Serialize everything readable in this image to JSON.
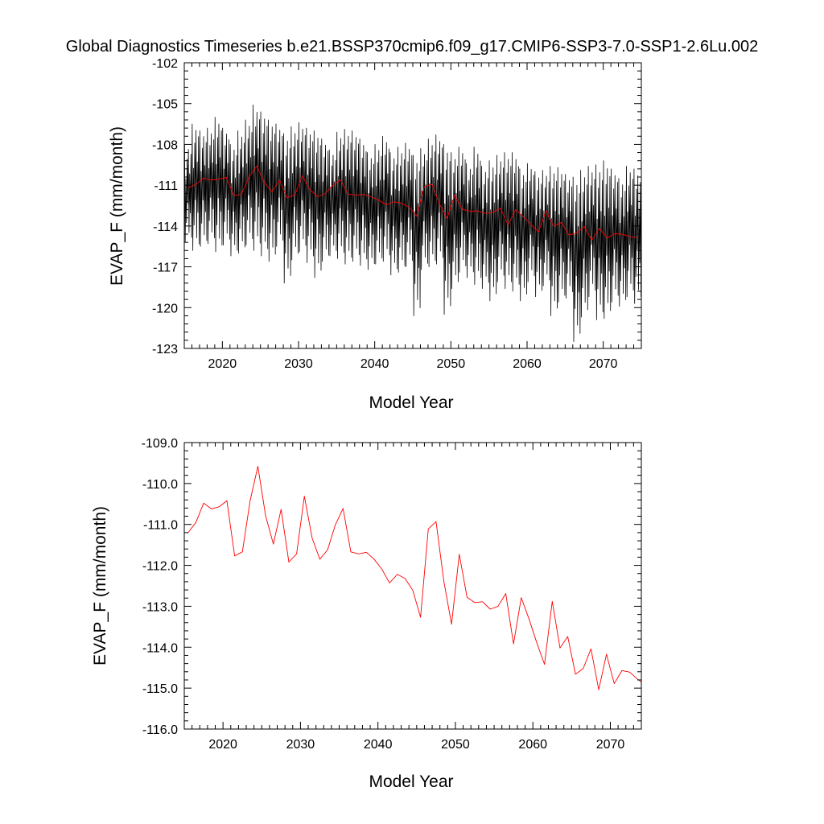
{
  "title": "Global Diagnostics Timeseries b.e21.BSSP370cmip6.f09_g17.CMIP6-SSP3-7.0-SSP1-2.6Lu.002",
  "colors": {
    "monthly": "#000000",
    "annual": "#ff0000",
    "axes": "#000000",
    "background": "#ffffff"
  },
  "chart_data": [
    {
      "type": "line",
      "xlabel": "Model Year",
      "ylabel": "EVAP_F (mm/month)",
      "xlim": [
        2015,
        2075
      ],
      "ylim": [
        -123,
        -102
      ],
      "x_ticks": [
        2020,
        2030,
        2040,
        2050,
        2060,
        2070
      ],
      "y_ticks": [
        -123,
        -120,
        -117,
        -114,
        -111,
        -108,
        -105,
        -102
      ],
      "y_tick_labels": [
        "-123",
        "-120",
        "-117",
        "-114",
        "-111",
        "-108",
        "-105",
        "-102"
      ],
      "grid": false,
      "series": [
        {
          "color": "#000000",
          "x_start": 2015.04,
          "x_step": 0.0833333,
          "seasonal_extremes": [
            [
              2015,
              -108.0,
              -115.2
            ],
            [
              2016,
              -106.5,
              -115.8
            ],
            [
              2017,
              -107.0,
              -115.5
            ],
            [
              2018,
              -106.8,
              -115.3
            ],
            [
              2019,
              -106.0,
              -115.9
            ],
            [
              2020,
              -106.8,
              -115.4
            ],
            [
              2021,
              -108.0,
              -116.2
            ],
            [
              2022,
              -107.0,
              -116.0
            ],
            [
              2023,
              -106.2,
              -115.4
            ],
            [
              2024,
              -105.1,
              -115.8
            ],
            [
              2025,
              -105.6,
              -116.2
            ],
            [
              2026,
              -106.2,
              -116.6
            ],
            [
              2027,
              -106.5,
              -115.5
            ],
            [
              2028,
              -107.2,
              -118.2
            ],
            [
              2029,
              -106.7,
              -116.5
            ],
            [
              2030,
              -106.4,
              -115.9
            ],
            [
              2031,
              -106.8,
              -116.7
            ],
            [
              2032,
              -107.0,
              -117.8
            ],
            [
              2033,
              -107.6,
              -116.6
            ],
            [
              2034,
              -108.4,
              -116.2
            ],
            [
              2035,
              -107.1,
              -116.4
            ],
            [
              2036,
              -106.9,
              -116.8
            ],
            [
              2037,
              -107.0,
              -116.6
            ],
            [
              2038,
              -107.6,
              -116.9
            ],
            [
              2039,
              -108.6,
              -117.2
            ],
            [
              2040,
              -108.0,
              -116.8
            ],
            [
              2041,
              -107.4,
              -116.6
            ],
            [
              2042,
              -108.6,
              -117.6
            ],
            [
              2043,
              -108.2,
              -117.4
            ],
            [
              2044,
              -107.9,
              -117.0
            ],
            [
              2045,
              -108.8,
              -120.6
            ],
            [
              2046,
              -108.3,
              -117.2
            ],
            [
              2047,
              -107.6,
              -117.0
            ],
            [
              2048,
              -107.3,
              -116.8
            ],
            [
              2049,
              -108.0,
              -120.5
            ],
            [
              2050,
              -108.6,
              -118.6
            ],
            [
              2051,
              -108.2,
              -117.4
            ],
            [
              2052,
              -109.4,
              -117.8
            ],
            [
              2053,
              -108.2,
              -118.3
            ],
            [
              2054,
              -109.6,
              -118.6
            ],
            [
              2055,
              -109.2,
              -119.5
            ],
            [
              2056,
              -108.8,
              -118.1
            ],
            [
              2057,
              -108.6,
              -118.6
            ],
            [
              2058,
              -108.6,
              -118.8
            ],
            [
              2059,
              -109.8,
              -119.5
            ],
            [
              2060,
              -109.4,
              -118.1
            ],
            [
              2061,
              -110.0,
              -119.2
            ],
            [
              2062,
              -109.9,
              -118.4
            ],
            [
              2063,
              -109.6,
              -120.6
            ],
            [
              2064,
              -109.7,
              -119.6
            ],
            [
              2065,
              -110.2,
              -119.3
            ],
            [
              2066,
              -110.4,
              -122.5
            ],
            [
              2067,
              -109.9,
              -120.7
            ],
            [
              2068,
              -109.6,
              -119.2
            ],
            [
              2069,
              -109.5,
              -120.9
            ],
            [
              2070,
              -109.2,
              -120.8
            ],
            [
              2071,
              -109.8,
              -119.6
            ],
            [
              2072,
              -110.5,
              -119.9
            ],
            [
              2073,
              -109.6,
              -119.2
            ],
            [
              2074,
              -109.8,
              -119.7
            ]
          ]
        },
        {
          "color": "#ff0000",
          "x": [
            2015.5,
            2016.5,
            2017.5,
            2018.5,
            2019.5,
            2020.5,
            2021.5,
            2022.5,
            2023.5,
            2024.5,
            2025.5,
            2026.5,
            2027.5,
            2028.5,
            2029.5,
            2030.5,
            2031.5,
            2032.5,
            2033.5,
            2034.5,
            2035.5,
            2036.5,
            2037.5,
            2038.5,
            2039.5,
            2040.5,
            2041.5,
            2042.5,
            2043.5,
            2044.5,
            2045.5,
            2046.5,
            2047.5,
            2048.5,
            2049.5,
            2050.5,
            2051.5,
            2052.5,
            2053.5,
            2054.5,
            2055.5,
            2056.5,
            2057.5,
            2058.5,
            2059.5,
            2060.5,
            2061.5,
            2062.5,
            2063.5,
            2064.5,
            2065.5,
            2066.5,
            2067.5,
            2068.5,
            2069.5,
            2070.5,
            2071.5,
            2072.5,
            2073.5,
            2074.5
          ],
          "values": [
            -111.2,
            -110.95,
            -110.48,
            -110.62,
            -110.57,
            -110.42,
            -111.77,
            -111.67,
            -110.42,
            -109.58,
            -110.79,
            -111.48,
            -110.63,
            -111.92,
            -111.72,
            -110.31,
            -111.33,
            -111.85,
            -111.62,
            -111.01,
            -110.61,
            -111.67,
            -111.72,
            -111.68,
            -111.85,
            -112.09,
            -112.43,
            -112.22,
            -112.32,
            -112.61,
            -113.27,
            -111.11,
            -110.93,
            -112.38,
            -113.44,
            -111.73,
            -112.78,
            -112.91,
            -112.89,
            -113.07,
            -113.0,
            -112.69,
            -113.92,
            -112.79,
            -113.31,
            -113.89,
            -114.42,
            -112.88,
            -114.02,
            -113.74,
            -114.66,
            -114.52,
            -114.04,
            -115.04,
            -114.17,
            -114.89,
            -114.57,
            -114.61,
            -114.78,
            -114.85
          ]
        }
      ]
    },
    {
      "type": "line",
      "xlabel": "Model Year",
      "ylabel": "EVAP_F (mm/month)",
      "xlim": [
        2015,
        2074
      ],
      "ylim": [
        -116,
        -109
      ],
      "x_ticks": [
        2020,
        2030,
        2040,
        2050,
        2060,
        2070
      ],
      "y_ticks": [
        -116,
        -115,
        -114,
        -113,
        -112,
        -111,
        -110,
        -109
      ],
      "y_tick_labels": [
        "-116.0",
        "-115.0",
        "-114.0",
        "-113.0",
        "-112.0",
        "-111.0",
        "-110.0",
        "-109.0"
      ],
      "grid": false,
      "series": [
        {
          "color": "#ff0000",
          "x": [
            2015.5,
            2016.5,
            2017.5,
            2018.5,
            2019.5,
            2020.5,
            2021.5,
            2022.5,
            2023.5,
            2024.5,
            2025.5,
            2026.5,
            2027.5,
            2028.5,
            2029.5,
            2030.5,
            2031.5,
            2032.5,
            2033.5,
            2034.5,
            2035.5,
            2036.5,
            2037.5,
            2038.5,
            2039.5,
            2040.5,
            2041.5,
            2042.5,
            2043.5,
            2044.5,
            2045.5,
            2046.5,
            2047.5,
            2048.5,
            2049.5,
            2050.5,
            2051.5,
            2052.5,
            2053.5,
            2054.5,
            2055.5,
            2056.5,
            2057.5,
            2058.5,
            2059.5,
            2060.5,
            2061.5,
            2062.5,
            2063.5,
            2064.5,
            2065.5,
            2066.5,
            2067.5,
            2068.5,
            2069.5,
            2070.5,
            2071.5,
            2072.5,
            2073.5,
            2074.5
          ],
          "values": [
            -111.2,
            -110.95,
            -110.48,
            -110.62,
            -110.57,
            -110.42,
            -111.77,
            -111.67,
            -110.42,
            -109.58,
            -110.79,
            -111.48,
            -110.63,
            -111.92,
            -111.72,
            -110.31,
            -111.33,
            -111.85,
            -111.62,
            -111.01,
            -110.61,
            -111.67,
            -111.72,
            -111.68,
            -111.85,
            -112.09,
            -112.43,
            -112.22,
            -112.32,
            -112.61,
            -113.27,
            -111.11,
            -110.93,
            -112.38,
            -113.44,
            -111.73,
            -112.78,
            -112.91,
            -112.89,
            -113.07,
            -113.0,
            -112.69,
            -113.92,
            -112.79,
            -113.31,
            -113.89,
            -114.42,
            -112.88,
            -114.02,
            -113.74,
            -114.66,
            -114.52,
            -114.04,
            -115.04,
            -114.17,
            -114.89,
            -114.57,
            -114.61,
            -114.78,
            -114.85
          ]
        }
      ]
    }
  ]
}
